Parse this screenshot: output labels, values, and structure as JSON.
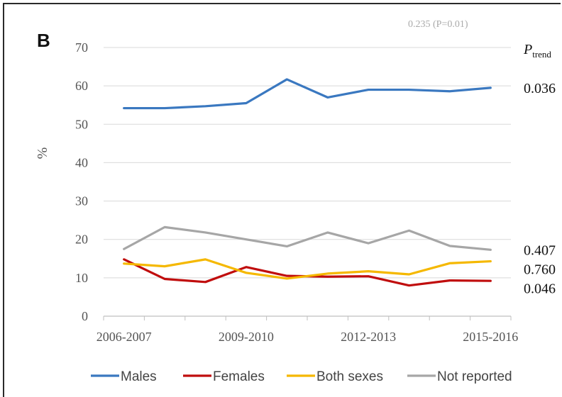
{
  "panel_label": "B",
  "ptrend": {
    "italic": "P",
    "sub": "trend"
  },
  "overlap_text": "0.235 (P=0.01)",
  "chart_data": {
    "type": "line",
    "title": "",
    "xlabel": "",
    "ylabel": "%",
    "ylim": [
      0,
      70
    ],
    "yticks": [
      0,
      10,
      20,
      30,
      40,
      50,
      60,
      70
    ],
    "x": [
      "2006-2007",
      "2007-2008",
      "2008-2009",
      "2009-2010",
      "2010-2011",
      "2011-2012",
      "2012-2013",
      "2013-2014",
      "2014-2015",
      "2015-2016"
    ],
    "xtick_labels": [
      "2006-2007",
      "2009-2010",
      "2012-2013",
      "2015-2016"
    ],
    "grid": "horizontal",
    "legend_position": "bottom",
    "series": [
      {
        "name": "Males",
        "color": "#3a78c0",
        "values": [
          54.2,
          54.2,
          54.7,
          55.5,
          61.7,
          57.0,
          59.0,
          59.0,
          58.6,
          59.5
        ],
        "p_trend": "0.036"
      },
      {
        "name": "Females",
        "color": "#c00d0d",
        "values": [
          14.8,
          9.7,
          8.9,
          12.8,
          10.5,
          10.3,
          10.4,
          8.0,
          9.3,
          9.2
        ],
        "p_trend": "0.046"
      },
      {
        "name": "Both sexes",
        "color": "#f5b800",
        "values": [
          13.7,
          13.0,
          14.8,
          11.3,
          9.8,
          11.1,
          11.7,
          10.9,
          13.8,
          14.3
        ],
        "p_trend": "0.760"
      },
      {
        "name": "Not reported",
        "color": "#a6a6a6",
        "values": [
          17.5,
          23.2,
          21.8,
          20.0,
          18.2,
          21.8,
          19.0,
          22.3,
          18.3,
          17.3
        ],
        "p_trend": "0.407"
      }
    ]
  }
}
